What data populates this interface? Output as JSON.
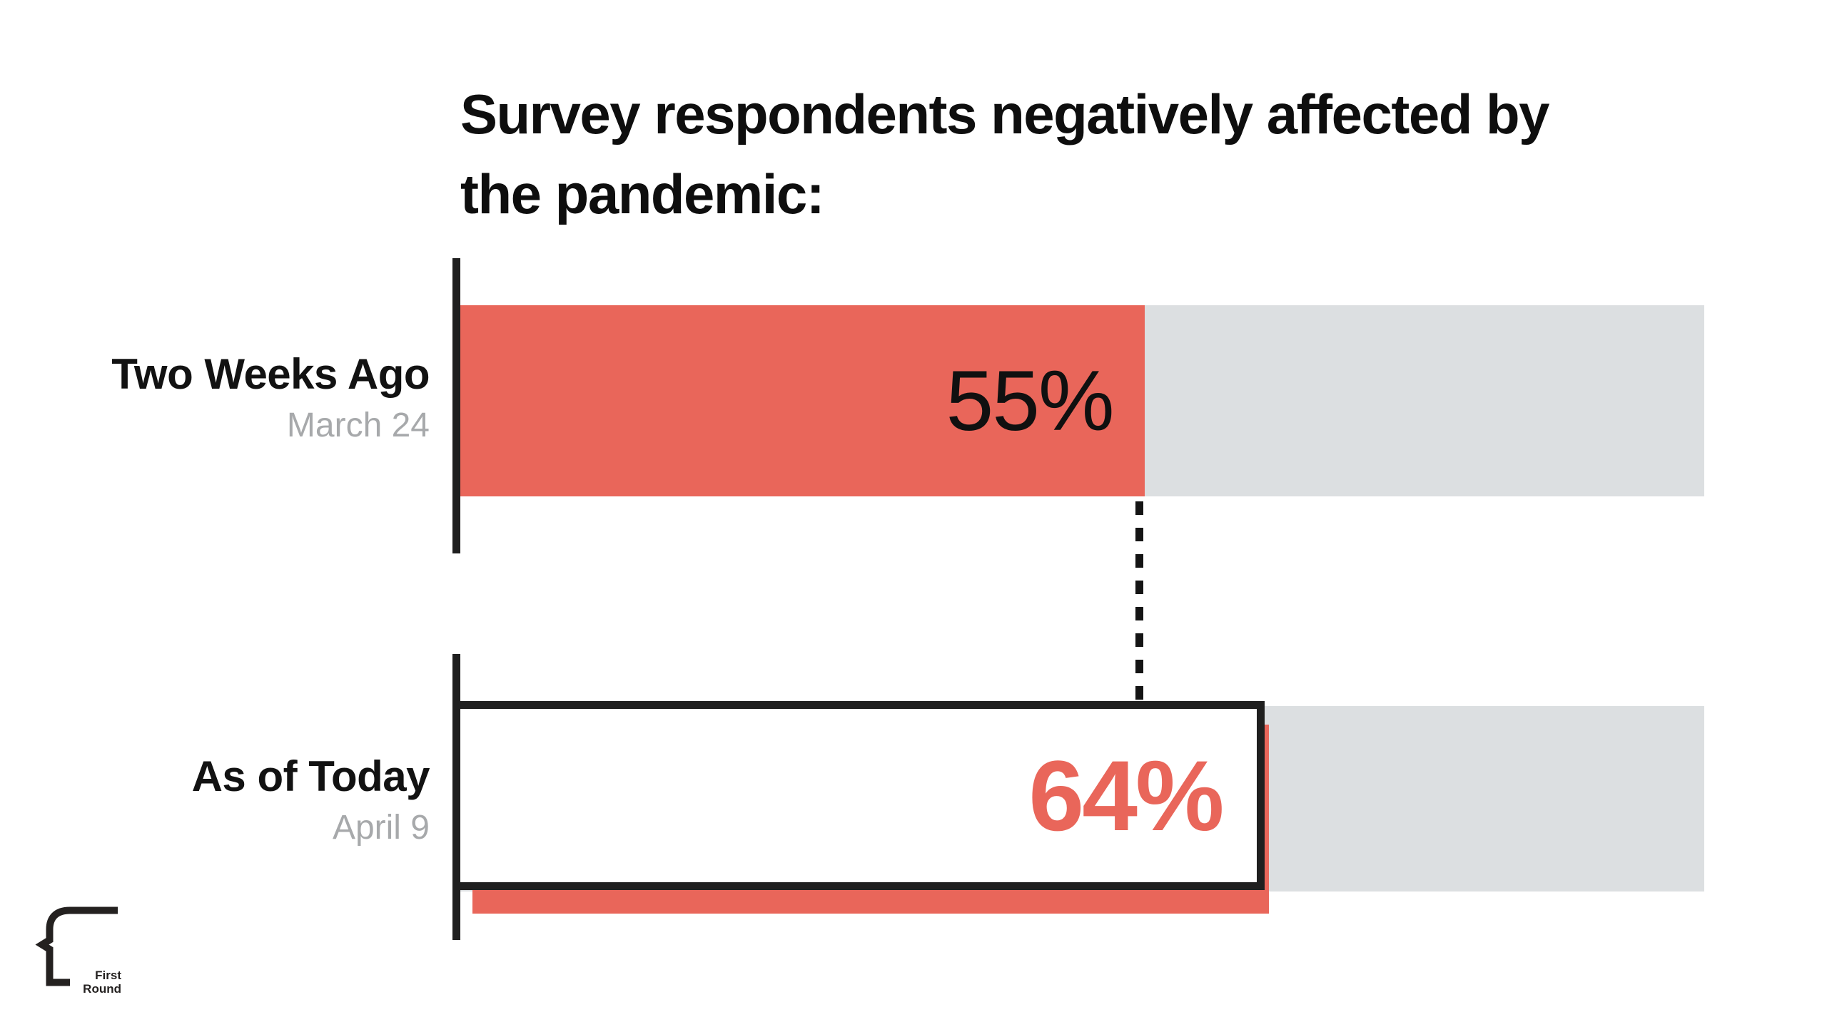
{
  "title": {
    "lines": [
      "Survey respondents negatively affected by",
      "the pandemic:"
    ]
  },
  "colors": {
    "accent_red": "#e9665a",
    "track_gray": "#dcdfe1",
    "ink": "#1f1f1f",
    "muted_label_gray": "#a7a9ab"
  },
  "chart_data": {
    "type": "bar",
    "orientation": "horizontal",
    "title": "Survey respondents negatively affected by the pandemic:",
    "categories": [
      "Two Weeks Ago",
      "As of Today"
    ],
    "category_sublabels": [
      "March 24",
      "April 9"
    ],
    "values": [
      55,
      64
    ],
    "value_labels": [
      "55%",
      "64%"
    ],
    "xlim": [
      0,
      100
    ],
    "grid": false,
    "legend": false,
    "annotations": [
      "dashed connector marking 55% level from first bar down to second bar"
    ]
  },
  "rows": [
    {
      "label": "Two Weeks Ago",
      "date": "March 24",
      "value": 55,
      "value_label": "55%",
      "style": "filled-red"
    },
    {
      "label": "As of Today",
      "date": "April 9",
      "value": 64,
      "value_label": "64%",
      "style": "outlined-white-red-shadow"
    }
  ],
  "logo": {
    "line1": "First",
    "line2": "Round"
  }
}
